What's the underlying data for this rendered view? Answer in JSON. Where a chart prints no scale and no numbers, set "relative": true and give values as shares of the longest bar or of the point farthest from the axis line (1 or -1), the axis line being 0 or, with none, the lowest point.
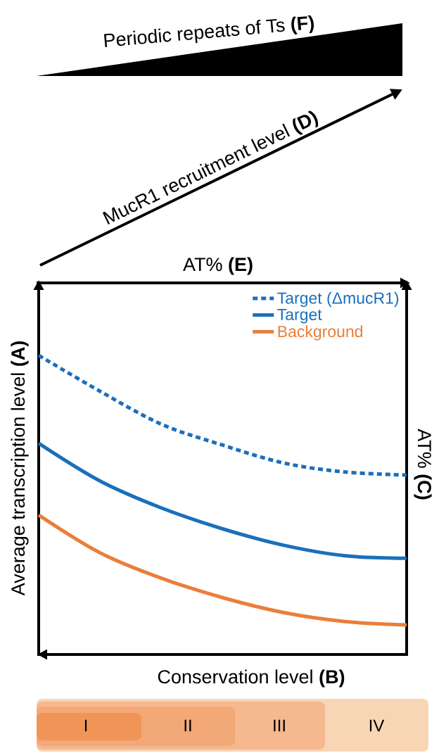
{
  "chart_data": {
    "type": "line",
    "relative": true,
    "xlabel": "Conservation level **(B)**",
    "ylabel": "Average transcription level **(A)**",
    "categories": [
      null,
      null,
      null,
      null,
      null,
      null,
      null
    ],
    "series": [
      {
        "name": "Target (ΔmucR1)",
        "color": "#1b6fba",
        "line_style": "dotted",
        "values": [
          1.0,
          0.88,
          0.77,
          0.7,
          0.64,
          0.61,
          0.6
        ]
      },
      {
        "name": "Target",
        "color": "#1b6fba",
        "line_style": "solid",
        "values": [
          0.706,
          0.58,
          0.49,
          0.42,
          0.365,
          0.33,
          0.322
        ]
      },
      {
        "name": "Background",
        "color": "#ea7e3a",
        "line_style": "solid",
        "values": [
          0.466,
          0.34,
          0.255,
          0.19,
          0.14,
          0.11,
          0.099
        ]
      }
    ],
    "legend": "top right",
    "annotations": [
      "AT% **(E)**",
      "AT% **(C)**",
      "MucR1 recruitment level **(D)**",
      "Periodic repeats of Ts **(F)**",
      "I",
      "II",
      "III",
      "IV"
    ]
  }
}
